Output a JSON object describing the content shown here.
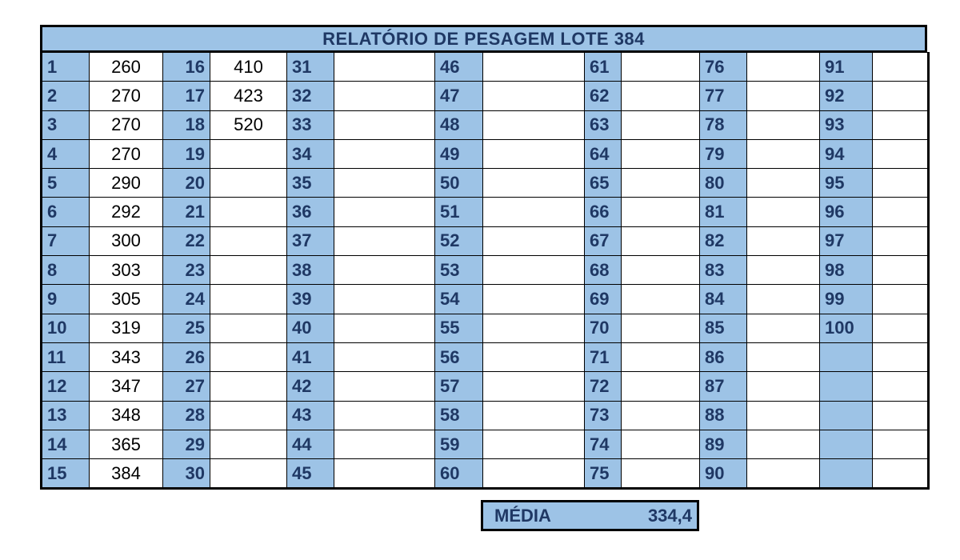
{
  "title": "RELATÓRIO DE PESAGEM LOTE 384",
  "rows": [
    [
      "1",
      "260",
      "16",
      "410",
      "31",
      "",
      "46",
      "",
      "61",
      "",
      "76",
      "",
      "91",
      ""
    ],
    [
      "2",
      "270",
      "17",
      "423",
      "32",
      "",
      "47",
      "",
      "62",
      "",
      "77",
      "",
      "92",
      ""
    ],
    [
      "3",
      "270",
      "18",
      "520",
      "33",
      "",
      "48",
      "",
      "63",
      "",
      "78",
      "",
      "93",
      ""
    ],
    [
      "4",
      "270",
      "19",
      "",
      "34",
      "",
      "49",
      "",
      "64",
      "",
      "79",
      "",
      "94",
      ""
    ],
    [
      "5",
      "290",
      "20",
      "",
      "35",
      "",
      "50",
      "",
      "65",
      "",
      "80",
      "",
      "95",
      ""
    ],
    [
      "6",
      "292",
      "21",
      "",
      "36",
      "",
      "51",
      "",
      "66",
      "",
      "81",
      "",
      "96",
      ""
    ],
    [
      "7",
      "300",
      "22",
      "",
      "37",
      "",
      "52",
      "",
      "67",
      "",
      "82",
      "",
      "97",
      ""
    ],
    [
      "8",
      "303",
      "23",
      "",
      "38",
      "",
      "53",
      "",
      "68",
      "",
      "83",
      "",
      "98",
      ""
    ],
    [
      "9",
      "305",
      "24",
      "",
      "39",
      "",
      "54",
      "",
      "69",
      "",
      "84",
      "",
      "99",
      ""
    ],
    [
      "10",
      "319",
      "25",
      "",
      "40",
      "",
      "55",
      "",
      "70",
      "",
      "85",
      "",
      "100",
      ""
    ],
    [
      "11",
      "343",
      "26",
      "",
      "41",
      "",
      "56",
      "",
      "71",
      "",
      "86",
      "",
      "",
      ""
    ],
    [
      "12",
      "347",
      "27",
      "",
      "42",
      "",
      "57",
      "",
      "72",
      "",
      "87",
      "",
      "",
      ""
    ],
    [
      "13",
      "348",
      "28",
      "",
      "43",
      "",
      "58",
      "",
      "73",
      "",
      "88",
      "",
      "",
      ""
    ],
    [
      "14",
      "365",
      "29",
      "",
      "44",
      "",
      "59",
      "",
      "74",
      "",
      "89",
      "",
      "",
      ""
    ],
    [
      "15",
      "384",
      "30",
      "",
      "45",
      "",
      "60",
      "",
      "75",
      "",
      "90",
      "",
      "",
      ""
    ]
  ],
  "average": {
    "label": "MÉDIA",
    "value": "334,4"
  },
  "colors": {
    "header_fill": "#9dc3e6",
    "header_text": "#1f3864",
    "border": "#000000"
  }
}
